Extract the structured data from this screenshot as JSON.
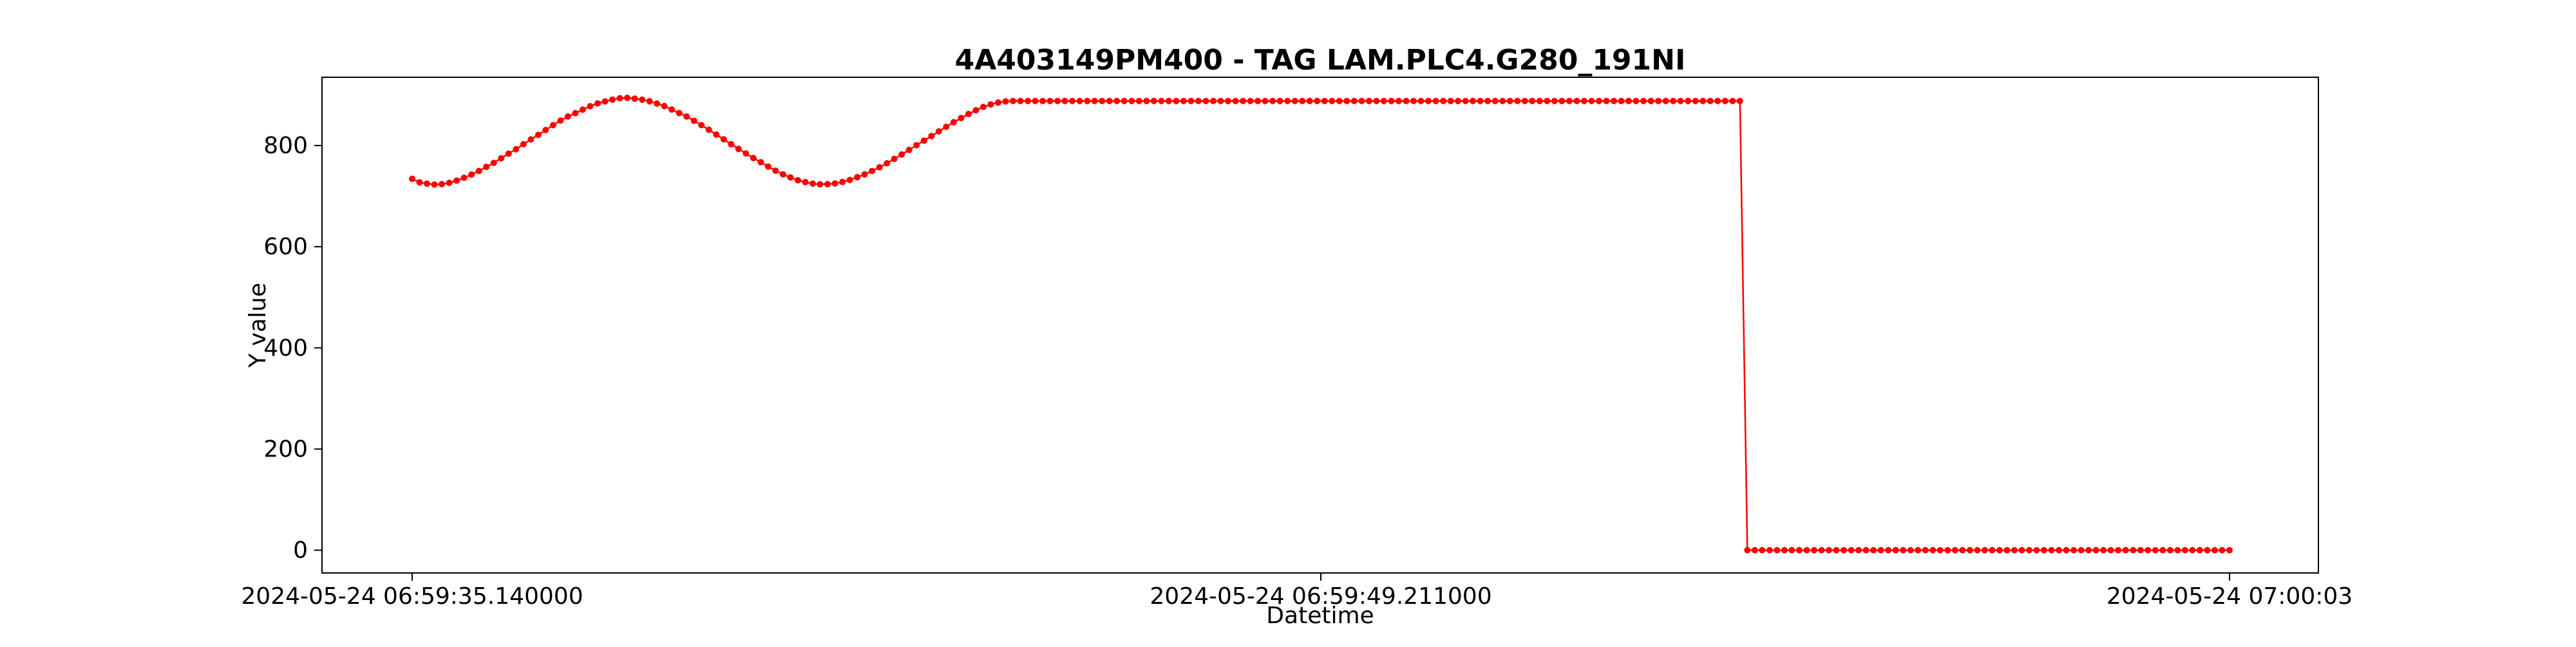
{
  "chart_data": {
    "type": "line",
    "title": "4A403149PM400 - TAG LAM.PLC4.G280_191NI",
    "xlabel": "Datetime",
    "ylabel": "Y value",
    "x_tick_labels": [
      "2024-05-24 06:59:35.140000",
      "2024-05-24 06:59:49.211000",
      "2024-05-24 07:00:03"
    ],
    "y_ticks": [
      0,
      200,
      400,
      600,
      800
    ],
    "ylim": [
      -45,
      935
    ],
    "grid": false,
    "colors": {
      "line": "#ff0000",
      "marker": "#ff0000",
      "frame": "#000000",
      "background": "#ffffff"
    },
    "series": [
      {
        "values": [
          734.3,
          727.3,
          724.7,
          723.0,
          723.7,
          726.3,
          730.7,
          736.3,
          742.7,
          749.7,
          757.7,
          765.7,
          774.7,
          784.0,
          792.7,
          802.7,
          812.0,
          821.0,
          830.7,
          840.3,
          849.3,
          857.3,
          864.0,
          871.0,
          877.7,
          883.3,
          887.3,
          890.7,
          893.7,
          894.3,
          892.7,
          890.7,
          887.7,
          883.0,
          878.0,
          871.3,
          864.3,
          857.3,
          849.0,
          840.3,
          831.3,
          821.7,
          812.3,
          802.7,
          793.3,
          784.3,
          775.3,
          767.0,
          758.3,
          750.3,
          743.0,
          737.0,
          731.3,
          727.7,
          724.7,
          723.3,
          723.7,
          725.0,
          728.0,
          732.0,
          737.3,
          743.0,
          749.7,
          757.0,
          765.0,
          773.7,
          782.3,
          791.3,
          800.7,
          809.7,
          818.7,
          828.0,
          837.0,
          846.0,
          854.3,
          862.3,
          869.7,
          876.3,
          881.3,
          885.0,
          887.3,
          888.0,
          888.0,
          888.0,
          888.0,
          888.0,
          888.0,
          888.0,
          888.0,
          888.0,
          888.0,
          888.0,
          888.0,
          888.0,
          888.0,
          888.0,
          888.0,
          888.0,
          888.0,
          888.0,
          888.0,
          888.0,
          888.0,
          888.0,
          888.0,
          888.0,
          888.0,
          888.0,
          888.0,
          888.0,
          888.0,
          888.0,
          888.0,
          888.0,
          888.0,
          888.0,
          888.0,
          888.0,
          888.0,
          888.0,
          888.0,
          888.0,
          888.0,
          888.0,
          888.0,
          888.0,
          888.0,
          888.0,
          888.0,
          888.0,
          888.0,
          888.0,
          888.0,
          888.0,
          888.0,
          888.0,
          888.0,
          888.0,
          888.0,
          888.0,
          888.0,
          888.0,
          888.0,
          888.0,
          888.0,
          888.0,
          888.0,
          888.0,
          888.0,
          888.0,
          888.0,
          888.0,
          888.0,
          888.0,
          888.0,
          888.0,
          888.0,
          888.0,
          888.0,
          888.0,
          888.0,
          888.0,
          888.0,
          888.0,
          888.0,
          888.0,
          888.0,
          888.0,
          888.0,
          888.0,
          888.0,
          888.0,
          888.0,
          888.0,
          888.0,
          888.0,
          888.0,
          888.0,
          888.0,
          888.0,
          0,
          0,
          0,
          0,
          0,
          0,
          0,
          0,
          0,
          0,
          0,
          0,
          0,
          0,
          0,
          0,
          0,
          0,
          0,
          0,
          0,
          0,
          0,
          0,
          0,
          0,
          0,
          0,
          0,
          0,
          0,
          0,
          0,
          0,
          0,
          0,
          0,
          0,
          0,
          0,
          0,
          0,
          0,
          0,
          0,
          0,
          0,
          0,
          0,
          0,
          0,
          0,
          0,
          0,
          0,
          0,
          0,
          0,
          0,
          0,
          0,
          0,
          0,
          0,
          0,
          0
        ]
      }
    ]
  }
}
